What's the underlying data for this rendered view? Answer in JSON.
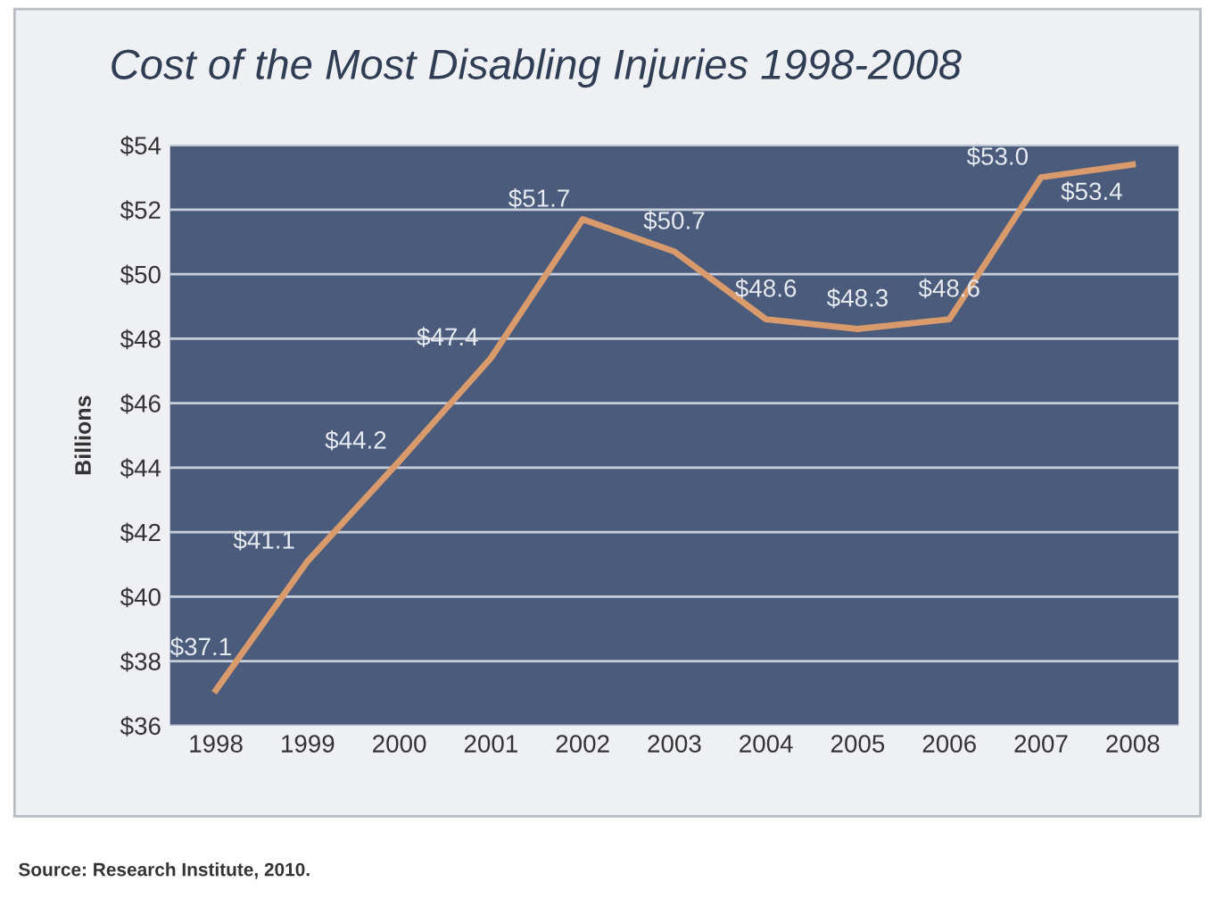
{
  "chart_data": {
    "type": "line",
    "title": "Cost of the Most Disabling Injuries 1998-2008",
    "ylabel": "Billions",
    "categories": [
      "1998",
      "1999",
      "2000",
      "2001",
      "2002",
      "2003",
      "2004",
      "2005",
      "2006",
      "2007",
      "2008"
    ],
    "series": [
      {
        "color": "#d99a6c",
        "values": [
          37.1,
          41.1,
          44.2,
          47.4,
          51.7,
          50.7,
          48.6,
          48.3,
          48.6,
          53.0,
          53.4
        ],
        "value_labels": [
          "$37.1",
          "$41.1",
          "$44.2",
          "$47.4",
          "$51.7",
          "$50.7",
          "$48.6",
          "$48.3",
          "$48.6",
          "$53.0",
          "$53.4"
        ]
      }
    ],
    "ylim": [
      36,
      54
    ],
    "yticks": [
      {
        "value": 36,
        "label": "$36"
      },
      {
        "value": 38,
        "label": "$38"
      },
      {
        "value": 40,
        "label": "$40"
      },
      {
        "value": 42,
        "label": "$42"
      },
      {
        "value": 44,
        "label": "$44"
      },
      {
        "value": 46,
        "label": "$46"
      },
      {
        "value": 48,
        "label": "$48"
      },
      {
        "value": 50,
        "label": "$50"
      },
      {
        "value": 52,
        "label": "$52"
      },
      {
        "value": 54,
        "label": "$54"
      }
    ],
    "grid": "y",
    "marker": "none",
    "line_style": "solid",
    "annotations": [
      "Source: Research Institute, 2010."
    ]
  }
}
